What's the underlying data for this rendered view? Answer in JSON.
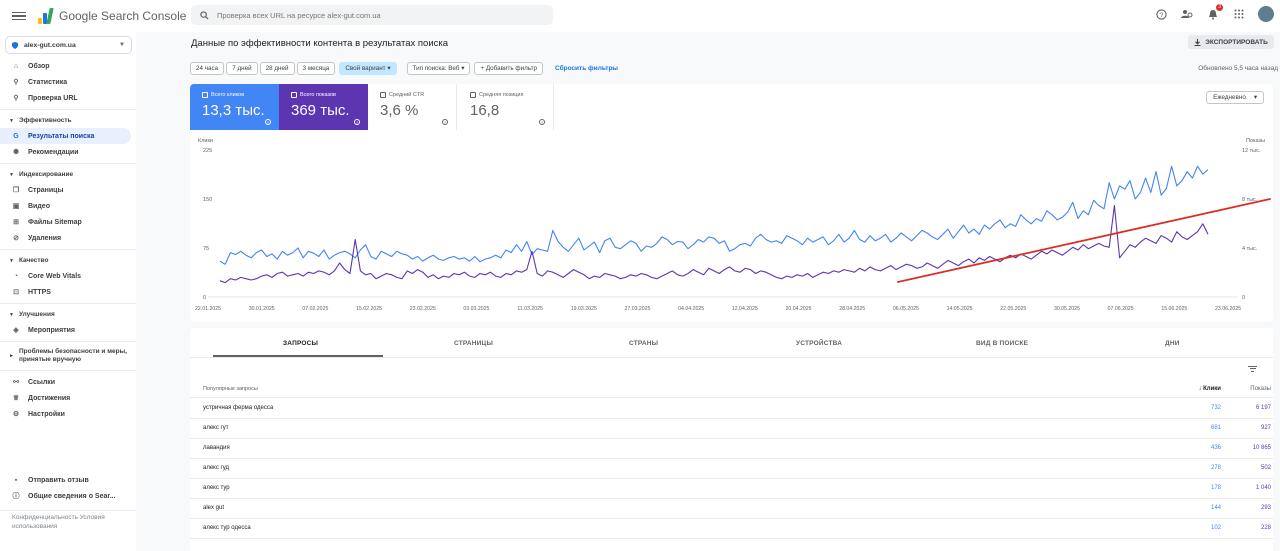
{
  "app": {
    "brand": "Google Search Console"
  },
  "search": {
    "placeholder": "Проверка всех URL на ресурсе alex-gut.com.ua"
  },
  "notifications": {
    "count": "3"
  },
  "property": {
    "name": "alex-gut.com.ua"
  },
  "sidebar": {
    "overview": "Обзор",
    "stats": "Статистика",
    "url_inspection": "Проверка URL",
    "sections": {
      "performance": "Эффективность",
      "indexing": "Индексирование",
      "quality": "Качество",
      "enhancements": "Улучшения"
    },
    "search_results": "Результаты поиска",
    "recommendations": "Рекомендации",
    "pages": "Страницы",
    "video": "Видео",
    "sitemaps": "Файлы Sitemap",
    "removals": "Удаления",
    "cwv": "Core Web Vitals",
    "https": "HTTPS",
    "events": "Мероприятия",
    "security": "Проблемы безопасности и меры, принятые вручную",
    "links": "Ссылки",
    "achievements": "Достижения",
    "settings": "Настройки",
    "feedback": "Отправить отзыв",
    "about": "Общие сведения о Sear...",
    "footer": "Конфиденциальность   Условия использования"
  },
  "page": {
    "title": "Данные по эффективности контента в результатах поиска",
    "export": "ЭКСПОРТИРОВАТЬ",
    "updated": "Обновлено 5,5 часа назад"
  },
  "filters": {
    "ranges": [
      "24 часа",
      "7 дней",
      "28 дней",
      "3 месяца"
    ],
    "custom": "Свой вариант",
    "search_type": "Тип поиска: Веб",
    "add_filter": "Добавить фильтр",
    "reset": "Сбросить фильтры"
  },
  "metrics": {
    "clicks": {
      "label": "Всего кликов",
      "value": "13,3 тыс."
    },
    "impressions": {
      "label": "Всего показов",
      "value": "369 тыс."
    },
    "ctr": {
      "label": "Средний CTR",
      "value": "3,6 %"
    },
    "position": {
      "label": "Средняя позиция",
      "value": "16,8"
    }
  },
  "granularity": "Ежедневно",
  "colors": {
    "clicks": "#4285f4",
    "impressions": "#5e35b1",
    "trend": "#d93025"
  },
  "chart_data": {
    "type": "line",
    "left_axis_label": "Клики",
    "right_axis_label": "Показы",
    "left_ticks": [
      "225",
      "150",
      "75",
      "0"
    ],
    "right_ticks": [
      "12 тыс.",
      "8 тыс.",
      "4 тыс.",
      "0"
    ],
    "ylim": [
      0,
      225
    ],
    "x_ticks": [
      "22.01.2025",
      "30.01.2025",
      "07.02.2025",
      "15.02.2025",
      "23.02.2025",
      "03.03.2025",
      "11.03.2025",
      "19.03.2025",
      "27.03.2025",
      "04.04.2025",
      "12.04.2025",
      "20.04.2025",
      "28.04.2025",
      "06.05.2025",
      "14.05.2025",
      "22.05.2025",
      "30.05.2025",
      "07.06.2025",
      "15.06.2025",
      "23.06.2025"
    ],
    "series": [
      {
        "name": "Всего кликов",
        "values": [
          55,
          50,
          68,
          65,
          70,
          64,
          60,
          68,
          72,
          62,
          66,
          58,
          70,
          64,
          68,
          75,
          60,
          70,
          67,
          62,
          72,
          58,
          64,
          68,
          70,
          66,
          60,
          72,
          80,
          62,
          58,
          70,
          66,
          62,
          70,
          66,
          64,
          58,
          62,
          55,
          60,
          64,
          58,
          56,
          60,
          62,
          58,
          60,
          55,
          62,
          54,
          58,
          60,
          64,
          60,
          72,
          68,
          80,
          70,
          85,
          65,
          74,
          72,
          70,
          102,
          85,
          76,
          70,
          80,
          90,
          72,
          78,
          84,
          68,
          86,
          90,
          76,
          74,
          80,
          86,
          82,
          70,
          78,
          76,
          82,
          92,
          88,
          80,
          85,
          84,
          74,
          80,
          88,
          84,
          92,
          90,
          82,
          86,
          70,
          74,
          80,
          82,
          78,
          90,
          96,
          88,
          84,
          86,
          82,
          94,
          90,
          86,
          80,
          90,
          84,
          88,
          92,
          80,
          86,
          96,
          84,
          90,
          102,
          88,
          84,
          94,
          86,
          90,
          96,
          84,
          90,
          98,
          92,
          86,
          94,
          102,
          98,
          92,
          88,
          96,
          104,
          90,
          100,
          110,
          98,
          104,
          96,
          110,
          104,
          112,
          118,
          106,
          112,
          108,
          126,
          118,
          112,
          120,
          116,
          132,
          126,
          118,
          122,
          130,
          145,
          120,
          132,
          126,
          148,
          140,
          135,
          175,
          150,
          170,
          165,
          178,
          150,
          160,
          182,
          160,
          192,
          156,
          166,
          200,
          170,
          178,
          192,
          182,
          200,
          188,
          195
        ]
      },
      {
        "name": "Всего показов",
        "values": [
          25,
          22,
          28,
          26,
          30,
          28,
          26,
          28,
          32,
          34,
          30,
          36,
          38,
          32,
          34,
          36,
          32,
          38,
          36,
          40,
          38,
          34,
          40,
          52,
          42,
          36,
          88,
          40,
          34,
          36,
          28,
          32,
          36,
          34,
          30,
          28,
          40,
          36,
          42,
          38,
          30,
          34,
          28,
          32,
          30,
          36,
          34,
          38,
          32,
          30,
          36,
          34,
          38,
          32,
          30,
          36,
          34,
          40,
          38,
          42,
          70,
          36,
          32,
          40,
          38,
          34,
          30,
          36,
          42,
          38,
          34,
          28,
          32,
          30,
          36,
          34,
          32,
          28,
          30,
          34,
          32,
          36,
          34,
          30,
          28,
          32,
          36,
          40,
          34,
          32,
          36,
          42,
          38,
          34,
          44,
          40,
          36,
          42,
          46,
          40,
          38,
          44,
          42,
          36,
          40,
          38,
          34,
          30,
          28,
          32,
          30,
          34,
          32,
          36,
          30,
          34,
          38,
          36,
          40,
          38,
          42,
          40,
          38,
          44,
          40,
          46,
          42,
          40,
          44,
          48,
          42,
          46,
          50,
          48,
          44,
          46,
          52,
          48,
          44,
          50,
          56,
          52,
          48,
          54,
          58,
          52,
          60,
          56,
          62,
          58,
          54,
          60,
          64,
          60,
          66,
          62,
          58,
          64,
          70,
          66,
          72,
          68,
          64,
          70,
          76,
          72,
          80,
          74,
          78,
          82,
          78,
          76,
          140,
          60,
          70,
          80,
          76,
          84,
          90,
          86,
          82,
          94,
          90,
          84,
          100,
          92,
          88,
          94,
          100,
          112,
          96
        ]
      }
    ],
    "trend_line": {
      "from": {
        "date": "06.05.2025",
        "value": 23
      },
      "to": {
        "date": "23.06.2025",
        "value": 150
      }
    }
  },
  "tabs": [
    "ЗАПРОСЫ",
    "СТРАНИЦЫ",
    "СТРАНЫ",
    "УСТРОЙСТВА",
    "ВИД В ПОИСКЕ",
    "ДНИ"
  ],
  "table": {
    "headers": {
      "query": "Популярные запросы",
      "clicks": "Клики",
      "impressions": "Показы"
    },
    "rows": [
      {
        "query": "устричная ферма одесса",
        "clicks": "732",
        "impressions": "6 197"
      },
      {
        "query": "алекс гут",
        "clicks": "681",
        "impressions": "927"
      },
      {
        "query": "лавандия",
        "clicks": "436",
        "impressions": "10 865"
      },
      {
        "query": "алекс гуд",
        "clicks": "278",
        "impressions": "502"
      },
      {
        "query": "алекс тур",
        "clicks": "178",
        "impressions": "1 040"
      },
      {
        "query": "alex gut",
        "clicks": "144",
        "impressions": "293"
      },
      {
        "query": "алекс тур одесса",
        "clicks": "102",
        "impressions": "228"
      }
    ]
  }
}
